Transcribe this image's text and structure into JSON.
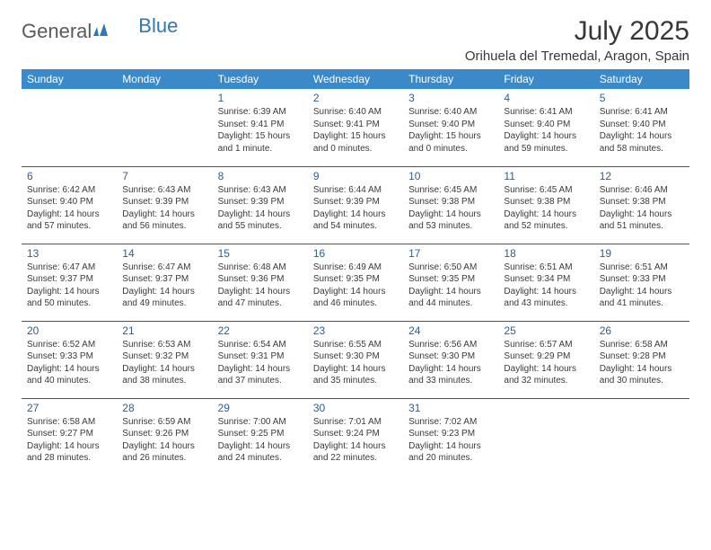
{
  "brand": {
    "part1": "General",
    "part2": "Blue"
  },
  "title": "July 2025",
  "location": "Orihuela del Tremedal, Aragon, Spain",
  "colors": {
    "header_bg": "#3b89c9",
    "header_text": "#ffffff",
    "daynum": "#2e5e8f",
    "row_border": "#2e5e8f",
    "body_text": "#3a3a3a",
    "title_text": "#373737",
    "logo_gray": "#5a5a5a",
    "logo_blue": "#2e77b8"
  },
  "weekdays": [
    "Sunday",
    "Monday",
    "Tuesday",
    "Wednesday",
    "Thursday",
    "Friday",
    "Saturday"
  ],
  "weeks": [
    [
      null,
      null,
      {
        "n": "1",
        "sr": "Sunrise: 6:39 AM",
        "ss": "Sunset: 9:41 PM",
        "d1": "Daylight: 15 hours",
        "d2": "and 1 minute."
      },
      {
        "n": "2",
        "sr": "Sunrise: 6:40 AM",
        "ss": "Sunset: 9:41 PM",
        "d1": "Daylight: 15 hours",
        "d2": "and 0 minutes."
      },
      {
        "n": "3",
        "sr": "Sunrise: 6:40 AM",
        "ss": "Sunset: 9:40 PM",
        "d1": "Daylight: 15 hours",
        "d2": "and 0 minutes."
      },
      {
        "n": "4",
        "sr": "Sunrise: 6:41 AM",
        "ss": "Sunset: 9:40 PM",
        "d1": "Daylight: 14 hours",
        "d2": "and 59 minutes."
      },
      {
        "n": "5",
        "sr": "Sunrise: 6:41 AM",
        "ss": "Sunset: 9:40 PM",
        "d1": "Daylight: 14 hours",
        "d2": "and 58 minutes."
      }
    ],
    [
      {
        "n": "6",
        "sr": "Sunrise: 6:42 AM",
        "ss": "Sunset: 9:40 PM",
        "d1": "Daylight: 14 hours",
        "d2": "and 57 minutes."
      },
      {
        "n": "7",
        "sr": "Sunrise: 6:43 AM",
        "ss": "Sunset: 9:39 PM",
        "d1": "Daylight: 14 hours",
        "d2": "and 56 minutes."
      },
      {
        "n": "8",
        "sr": "Sunrise: 6:43 AM",
        "ss": "Sunset: 9:39 PM",
        "d1": "Daylight: 14 hours",
        "d2": "and 55 minutes."
      },
      {
        "n": "9",
        "sr": "Sunrise: 6:44 AM",
        "ss": "Sunset: 9:39 PM",
        "d1": "Daylight: 14 hours",
        "d2": "and 54 minutes."
      },
      {
        "n": "10",
        "sr": "Sunrise: 6:45 AM",
        "ss": "Sunset: 9:38 PM",
        "d1": "Daylight: 14 hours",
        "d2": "and 53 minutes."
      },
      {
        "n": "11",
        "sr": "Sunrise: 6:45 AM",
        "ss": "Sunset: 9:38 PM",
        "d1": "Daylight: 14 hours",
        "d2": "and 52 minutes."
      },
      {
        "n": "12",
        "sr": "Sunrise: 6:46 AM",
        "ss": "Sunset: 9:38 PM",
        "d1": "Daylight: 14 hours",
        "d2": "and 51 minutes."
      }
    ],
    [
      {
        "n": "13",
        "sr": "Sunrise: 6:47 AM",
        "ss": "Sunset: 9:37 PM",
        "d1": "Daylight: 14 hours",
        "d2": "and 50 minutes."
      },
      {
        "n": "14",
        "sr": "Sunrise: 6:47 AM",
        "ss": "Sunset: 9:37 PM",
        "d1": "Daylight: 14 hours",
        "d2": "and 49 minutes."
      },
      {
        "n": "15",
        "sr": "Sunrise: 6:48 AM",
        "ss": "Sunset: 9:36 PM",
        "d1": "Daylight: 14 hours",
        "d2": "and 47 minutes."
      },
      {
        "n": "16",
        "sr": "Sunrise: 6:49 AM",
        "ss": "Sunset: 9:35 PM",
        "d1": "Daylight: 14 hours",
        "d2": "and 46 minutes."
      },
      {
        "n": "17",
        "sr": "Sunrise: 6:50 AM",
        "ss": "Sunset: 9:35 PM",
        "d1": "Daylight: 14 hours",
        "d2": "and 44 minutes."
      },
      {
        "n": "18",
        "sr": "Sunrise: 6:51 AM",
        "ss": "Sunset: 9:34 PM",
        "d1": "Daylight: 14 hours",
        "d2": "and 43 minutes."
      },
      {
        "n": "19",
        "sr": "Sunrise: 6:51 AM",
        "ss": "Sunset: 9:33 PM",
        "d1": "Daylight: 14 hours",
        "d2": "and 41 minutes."
      }
    ],
    [
      {
        "n": "20",
        "sr": "Sunrise: 6:52 AM",
        "ss": "Sunset: 9:33 PM",
        "d1": "Daylight: 14 hours",
        "d2": "and 40 minutes."
      },
      {
        "n": "21",
        "sr": "Sunrise: 6:53 AM",
        "ss": "Sunset: 9:32 PM",
        "d1": "Daylight: 14 hours",
        "d2": "and 38 minutes."
      },
      {
        "n": "22",
        "sr": "Sunrise: 6:54 AM",
        "ss": "Sunset: 9:31 PM",
        "d1": "Daylight: 14 hours",
        "d2": "and 37 minutes."
      },
      {
        "n": "23",
        "sr": "Sunrise: 6:55 AM",
        "ss": "Sunset: 9:30 PM",
        "d1": "Daylight: 14 hours",
        "d2": "and 35 minutes."
      },
      {
        "n": "24",
        "sr": "Sunrise: 6:56 AM",
        "ss": "Sunset: 9:30 PM",
        "d1": "Daylight: 14 hours",
        "d2": "and 33 minutes."
      },
      {
        "n": "25",
        "sr": "Sunrise: 6:57 AM",
        "ss": "Sunset: 9:29 PM",
        "d1": "Daylight: 14 hours",
        "d2": "and 32 minutes."
      },
      {
        "n": "26",
        "sr": "Sunrise: 6:58 AM",
        "ss": "Sunset: 9:28 PM",
        "d1": "Daylight: 14 hours",
        "d2": "and 30 minutes."
      }
    ],
    [
      {
        "n": "27",
        "sr": "Sunrise: 6:58 AM",
        "ss": "Sunset: 9:27 PM",
        "d1": "Daylight: 14 hours",
        "d2": "and 28 minutes."
      },
      {
        "n": "28",
        "sr": "Sunrise: 6:59 AM",
        "ss": "Sunset: 9:26 PM",
        "d1": "Daylight: 14 hours",
        "d2": "and 26 minutes."
      },
      {
        "n": "29",
        "sr": "Sunrise: 7:00 AM",
        "ss": "Sunset: 9:25 PM",
        "d1": "Daylight: 14 hours",
        "d2": "and 24 minutes."
      },
      {
        "n": "30",
        "sr": "Sunrise: 7:01 AM",
        "ss": "Sunset: 9:24 PM",
        "d1": "Daylight: 14 hours",
        "d2": "and 22 minutes."
      },
      {
        "n": "31",
        "sr": "Sunrise: 7:02 AM",
        "ss": "Sunset: 9:23 PM",
        "d1": "Daylight: 14 hours",
        "d2": "and 20 minutes."
      },
      null,
      null
    ]
  ]
}
